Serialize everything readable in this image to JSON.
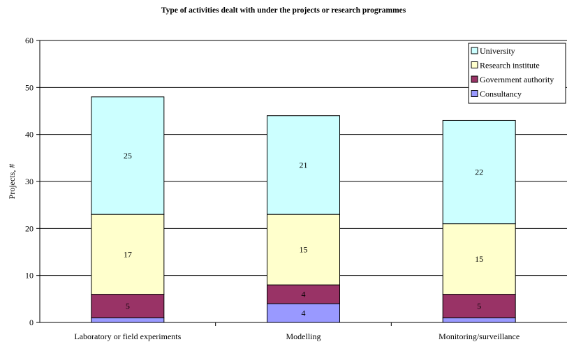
{
  "chart_data": {
    "type": "bar",
    "stacked": true,
    "title": "Type of activities dealt with under the projects or research programmes",
    "xlabel": "",
    "ylabel": "Projects, #",
    "ylim": [
      0,
      60
    ],
    "yticks": [
      0,
      10,
      20,
      30,
      40,
      50,
      60
    ],
    "grid": true,
    "legend_position": "top-right",
    "categories": [
      "Laboratory or field experiments",
      "Modelling",
      "Monitoring/surveillance"
    ],
    "series": [
      {
        "name": "Consultancy",
        "values": [
          1,
          4,
          1
        ],
        "color": "#9999ff"
      },
      {
        "name": "Government authority",
        "values": [
          5,
          4,
          5
        ],
        "color": "#993366"
      },
      {
        "name": "Research institute",
        "values": [
          17,
          15,
          15
        ],
        "color": "#ffffcc"
      },
      {
        "name": "University",
        "values": [
          25,
          21,
          22
        ],
        "color": "#ccffff"
      }
    ],
    "data_labels": [
      {
        "category": 0,
        "series": "Government authority",
        "text": "5"
      },
      {
        "category": 0,
        "series": "Research institute",
        "text": "17"
      },
      {
        "category": 0,
        "series": "University",
        "text": "25"
      },
      {
        "category": 1,
        "series": "Consultancy",
        "text": "4"
      },
      {
        "category": 1,
        "series": "Government authority",
        "text": "4"
      },
      {
        "category": 1,
        "series": "Research institute",
        "text": "15"
      },
      {
        "category": 1,
        "series": "University",
        "text": "21"
      },
      {
        "category": 2,
        "series": "Government authority",
        "text": "5"
      },
      {
        "category": 2,
        "series": "Research institute",
        "text": "15"
      },
      {
        "category": 2,
        "series": "University",
        "text": "22"
      }
    ],
    "legend_order": [
      "University",
      "Research institute",
      "Government authority",
      "Consultancy"
    ]
  }
}
